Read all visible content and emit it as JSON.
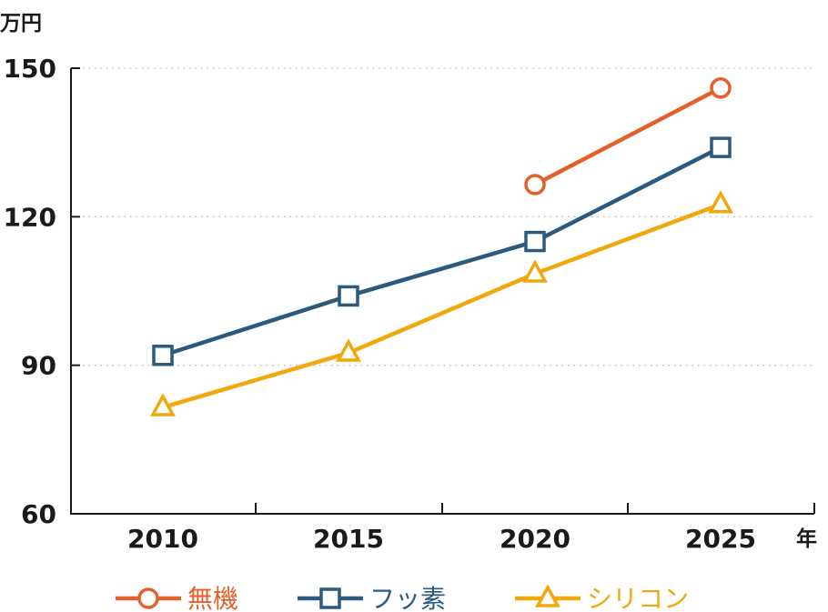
{
  "chart_data": {
    "type": "line",
    "y_unit": "万円",
    "x_unit": "年",
    "categories": [
      "2010",
      "2015",
      "2020",
      "2025"
    ],
    "yticks": [
      60,
      90,
      120,
      150
    ],
    "ylim": [
      60,
      150
    ],
    "grid": "horizontal dotted",
    "legend_position": "bottom",
    "series": [
      {
        "name": "無機",
        "color": "#e4602b",
        "marker": "circle",
        "values": [
          null,
          null,
          126.5,
          146
        ]
      },
      {
        "name": "フッ素",
        "color": "#2c5a7e",
        "marker": "square",
        "values": [
          92,
          104,
          115,
          134
        ]
      },
      {
        "name": "シリコン",
        "color": "#f0a80c",
        "marker": "triangle",
        "values": [
          81.5,
          92.5,
          108.5,
          122.5
        ]
      }
    ]
  }
}
